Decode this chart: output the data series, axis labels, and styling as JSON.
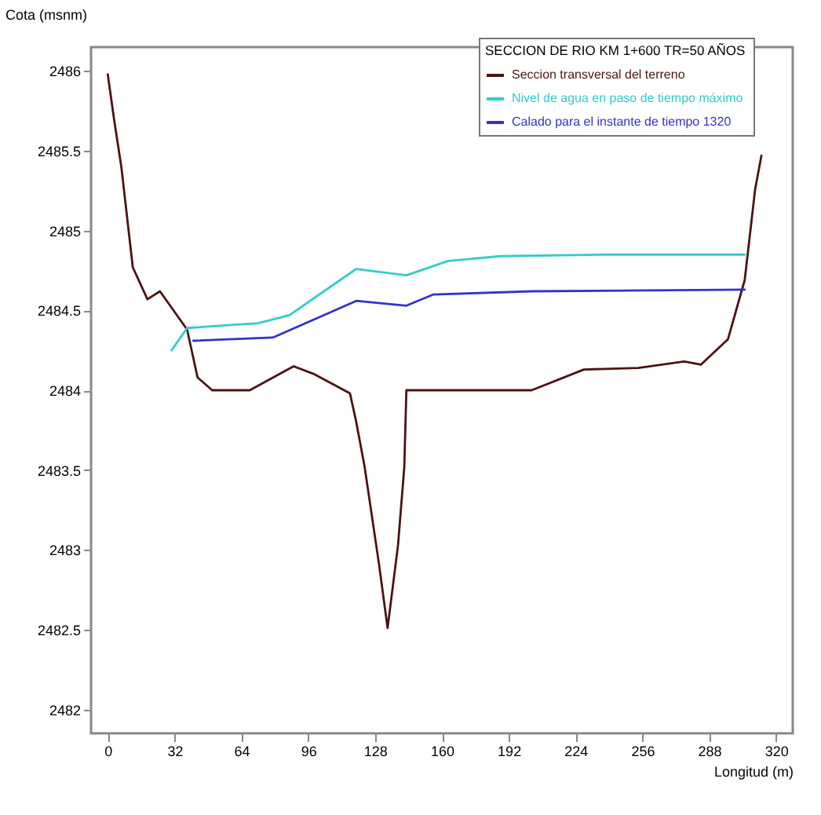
{
  "chart_data": {
    "type": "line",
    "xlabel": "Longitud (m)",
    "ylabel": "Cota (msnm)",
    "legend_title": "SECCION DE RIO KM 1+600 TR=50 AÑOS",
    "series": [
      {
        "name": "Seccion transversal del terreno",
        "color": "#4a1414",
        "x": [
          0,
          3,
          6.5,
          12,
          19,
          25,
          38,
          43,
          50,
          68,
          89,
          99,
          116,
          119,
          123,
          130,
          134,
          139,
          142,
          143,
          203,
          228,
          254,
          276,
          284,
          297,
          305,
          310,
          313
        ],
        "values": [
          2485.98,
          2485.7,
          2485.4,
          2484.77,
          2484.57,
          2484.62,
          2484.38,
          2484.08,
          2484.0,
          2484.0,
          2484.15,
          2484.1,
          2483.98,
          2483.8,
          2483.52,
          2482.9,
          2482.51,
          2483.03,
          2483.52,
          2484.0,
          2484.0,
          2484.13,
          2484.14,
          2484.18,
          2484.16,
          2484.32,
          2484.69,
          2485.26,
          2485.47
        ]
      },
      {
        "name": "Nivel de agua en paso de tiempo máximo",
        "color": "#33cccc",
        "x": [
          30.5,
          38,
          72,
          87,
          119,
          143,
          163,
          188,
          239,
          305
        ],
        "values": [
          2484.25,
          2484.39,
          2484.42,
          2484.47,
          2484.76,
          2484.72,
          2484.81,
          2484.84,
          2484.85,
          2484.85
        ]
      },
      {
        "name": "Calado para el instante de tiempo 1320",
        "color": "#3333cc",
        "x": [
          41,
          79,
          119,
          143,
          156,
          203,
          305
        ],
        "values": [
          2484.31,
          2484.33,
          2484.56,
          2484.53,
          2484.6,
          2484.62,
          2484.63
        ]
      }
    ],
    "xlim": [
      -8,
      328
    ],
    "xticks": [
      0,
      32,
      64,
      96,
      128,
      160,
      192,
      224,
      256,
      288,
      320
    ],
    "ylim": [
      2481.85,
      2486.15
    ],
    "yticks": [
      2482,
      2482.5,
      2483,
      2483.5,
      2484,
      2484.5,
      2485,
      2485.5,
      2486
    ],
    "legend": "top right",
    "grid": false,
    "marker": "none",
    "line_style": "solid"
  }
}
